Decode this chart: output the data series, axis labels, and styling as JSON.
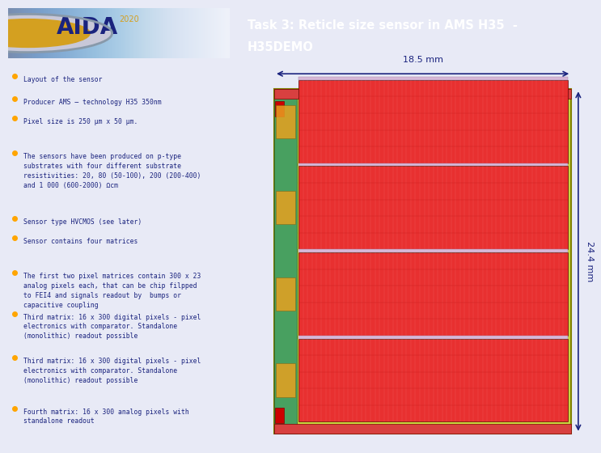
{
  "title_line1": "Task 3: Reticle size sensor in AMS H35  -",
  "title_line2": "H35DEMO",
  "title_bg_color": "#1a237e",
  "title_text_color": "#ffffff",
  "header_bg_left": "#c5cae9",
  "bg_color": "#dde3f0",
  "content_bg": "#e8eaf6",
  "bullet_color": "#ffa500",
  "text_color": "#1a237e",
  "bullet_points": [
    "Layout of the sensor",
    "Producer AMS – technology H35 350nm",
    "Pixel size is 250 μm x 50 μm.",
    "The sensors have been produced on p-type\nsubstrates with four different substrate\nresistivities: 20, 80 (50-100), 200 (200-400)\nand 1 000 (600-2000) Ωcm",
    "Sensor type HVCMOS (see later)",
    "Sensor contains four matrices",
    "The first two pixel matrices contain 300 x 23\nanalog pixels each, that can be chip filpped\nto FEI4 and signals readout by  bumps or\ncapacitive coupling",
    "Third matrix: 16 x 300 digital pixels - pixel\nelectronics with comparator. Standalone\n(monolithic) readout possible",
    "Third matrix: 16 x 300 digital pixels - pixel\nelectronics with comparator. Standalone\n(monolithic) readout possible",
    "Fourth matrix: 16 x 300 analog pixels with\nstandalone readout"
  ],
  "dim_width": "18.5 mm",
  "dim_height": "24.4 mm",
  "arrow_color": "#1a237e",
  "logo_text": "AIDA",
  "logo_year": "2020"
}
